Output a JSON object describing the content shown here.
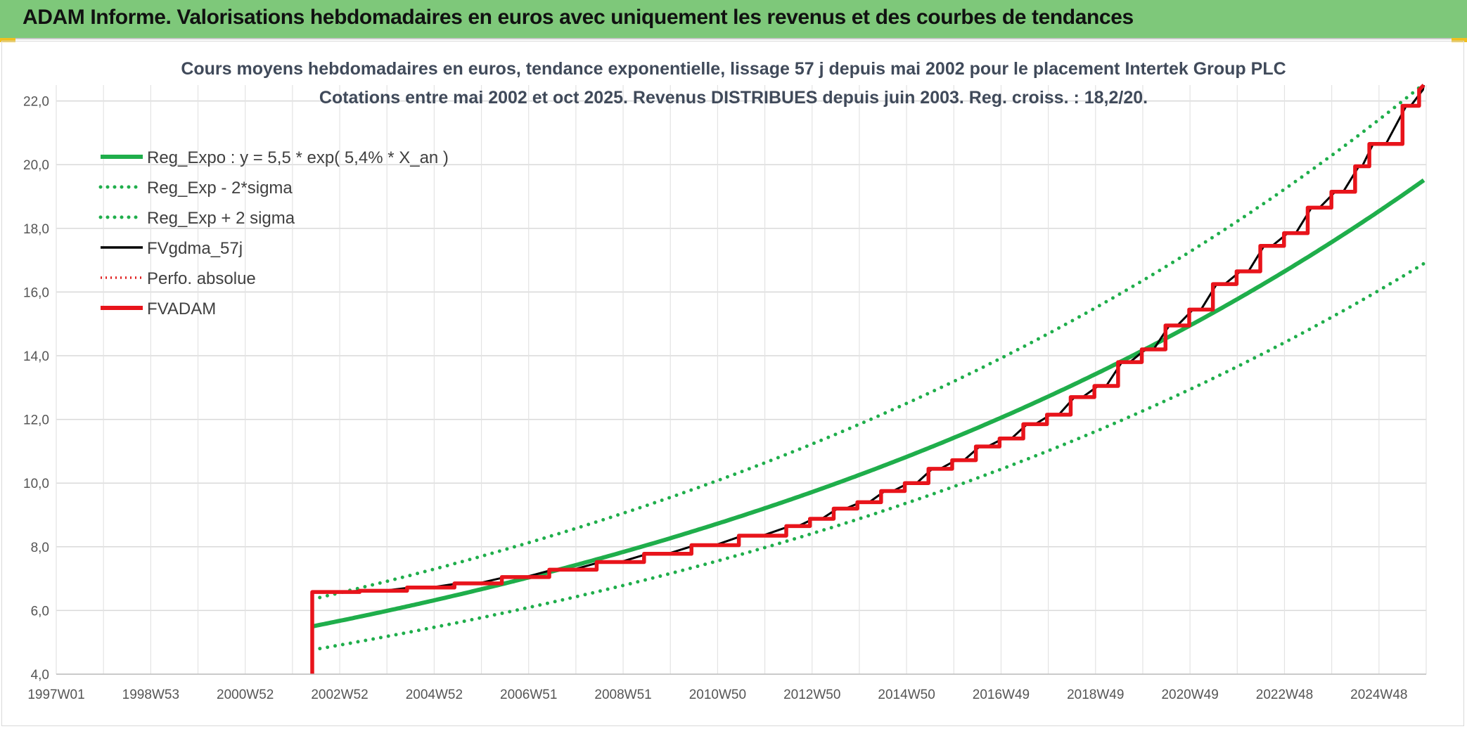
{
  "header": {
    "title": "ADAM Informe. Valorisations hebdomadaires en euros avec uniquement les revenus et des courbes de tendances"
  },
  "chart_data": {
    "type": "line",
    "title_line1": "Cours moyens hebdomadaires en euros, tendance exponentielle, lissage 57 j depuis mai 2002 pour le placement Intertek Group PLC",
    "title_line2": "Cotations entre mai 2002 et oct 2025. Revenus DISTRIBUES depuis juin 2003. Reg. croiss. : 18,2/20.",
    "x_ticks": [
      "1997W01",
      "1998W53",
      "2000W52",
      "2002W52",
      "2004W52",
      "2006W51",
      "2008W51",
      "2010W50",
      "2012W50",
      "2014W50",
      "2016W49",
      "2018W49",
      "2020W49",
      "2022W48",
      "2024W48"
    ],
    "y_ticks": [
      "4,0",
      "6,0",
      "8,0",
      "10,0",
      "12,0",
      "14,0",
      "16,0",
      "18,0",
      "20,0",
      "22,0"
    ],
    "ylim": [
      4,
      22.5
    ],
    "xlim_years": [
      1997.0,
      2025.9
    ],
    "grid": true,
    "legend_position": "top-left",
    "reg_expo": {
      "a": 5.5,
      "rate": 0.054,
      "x0_year": 2002.4,
      "x_end_year": 2025.85
    },
    "sigma_factor": 1.155,
    "series": [
      {
        "name": "Reg_Expo : y = 5,5 * exp( 5,4% *  X_an )",
        "color": "#1fae4b",
        "style": "solid-thick"
      },
      {
        "name": "Reg_Exp - 2*sigma",
        "color": "#1fae4b",
        "style": "dotted"
      },
      {
        "name": "Reg_Exp + 2 sigma",
        "color": "#1fae4b",
        "style": "dotted"
      },
      {
        "name": "FVgdma_57j",
        "color": "#000000",
        "style": "solid"
      },
      {
        "name": "Perfo. absolue",
        "color": "#e02020",
        "style": "dotted"
      },
      {
        "name": "FVADAM",
        "color": "#e8141b",
        "style": "solid-thick"
      }
    ],
    "fvadam_steps": [
      {
        "x": 2002.4,
        "y": 6.58
      },
      {
        "x": 2003.4,
        "y": 6.62
      },
      {
        "x": 2004.4,
        "y": 6.72
      },
      {
        "x": 2005.4,
        "y": 6.85
      },
      {
        "x": 2006.4,
        "y": 7.05
      },
      {
        "x": 2007.4,
        "y": 7.28
      },
      {
        "x": 2008.4,
        "y": 7.52
      },
      {
        "x": 2009.4,
        "y": 7.78
      },
      {
        "x": 2010.4,
        "y": 8.05
      },
      {
        "x": 2011.4,
        "y": 8.35
      },
      {
        "x": 2012.4,
        "y": 8.65
      },
      {
        "x": 2012.9,
        "y": 8.88
      },
      {
        "x": 2013.4,
        "y": 9.2
      },
      {
        "x": 2013.9,
        "y": 9.4
      },
      {
        "x": 2014.4,
        "y": 9.75
      },
      {
        "x": 2014.9,
        "y": 10.0
      },
      {
        "x": 2015.4,
        "y": 10.45
      },
      {
        "x": 2015.9,
        "y": 10.72
      },
      {
        "x": 2016.4,
        "y": 11.15
      },
      {
        "x": 2016.9,
        "y": 11.4
      },
      {
        "x": 2017.4,
        "y": 11.85
      },
      {
        "x": 2017.9,
        "y": 12.15
      },
      {
        "x": 2018.4,
        "y": 12.7
      },
      {
        "x": 2018.9,
        "y": 13.05
      },
      {
        "x": 2019.4,
        "y": 13.8
      },
      {
        "x": 2019.9,
        "y": 14.2
      },
      {
        "x": 2020.4,
        "y": 14.95
      },
      {
        "x": 2020.9,
        "y": 15.45
      },
      {
        "x": 2021.4,
        "y": 16.25
      },
      {
        "x": 2021.9,
        "y": 16.65
      },
      {
        "x": 2022.4,
        "y": 17.45
      },
      {
        "x": 2022.9,
        "y": 17.85
      },
      {
        "x": 2023.4,
        "y": 18.65
      },
      {
        "x": 2023.9,
        "y": 19.15
      },
      {
        "x": 2024.4,
        "y": 19.95
      },
      {
        "x": 2024.7,
        "y": 20.65
      },
      {
        "x": 2025.4,
        "y": 21.85
      },
      {
        "x": 2025.75,
        "y": 22.35
      }
    ],
    "fvadam_end": {
      "x": 2025.85,
      "y": 22.5
    },
    "fvadam_start_y": 4.0
  }
}
